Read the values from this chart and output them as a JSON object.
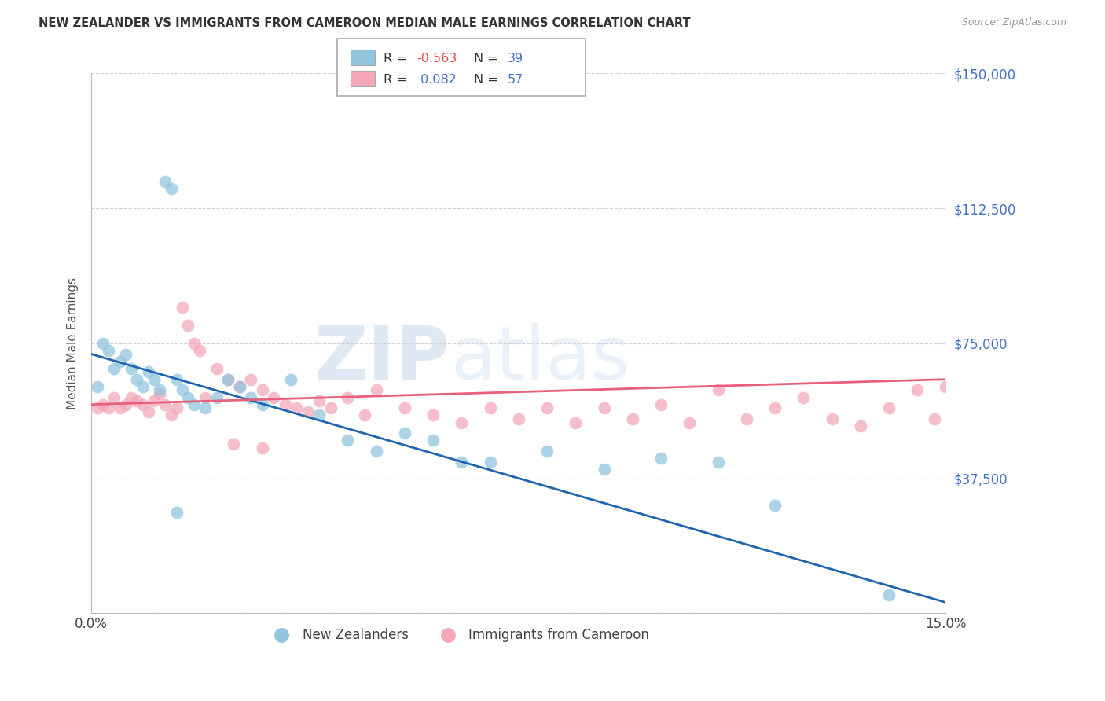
{
  "title": "NEW ZEALANDER VS IMMIGRANTS FROM CAMEROON MEDIAN MALE EARNINGS CORRELATION CHART",
  "source": "Source: ZipAtlas.com",
  "ylabel": "Median Male Earnings",
  "xlim": [
    0.0,
    0.15
  ],
  "ylim": [
    0,
    150000
  ],
  "yticks": [
    0,
    37500,
    75000,
    112500,
    150000
  ],
  "ytick_labels": [
    "",
    "$37,500",
    "$75,000",
    "$112,500",
    "$150,000"
  ],
  "xticks": [
    0.0,
    0.05,
    0.1,
    0.15
  ],
  "xtick_labels": [
    "0.0%",
    "",
    "",
    "15.0%"
  ],
  "background_color": "#ffffff",
  "grid_color": "#cccccc",
  "color_blue": "#92c5de",
  "color_pink": "#f4a7b9",
  "line_blue": "#2166ac",
  "line_pink": "#e8607a",
  "nz_trend_x": [
    0.0,
    0.15
  ],
  "nz_trend_y": [
    72000,
    3000
  ],
  "cam_trend_x": [
    0.0,
    0.15
  ],
  "cam_trend_y": [
    58000,
    65000
  ],
  "nz_x": [
    0.001,
    0.002,
    0.003,
    0.004,
    0.005,
    0.006,
    0.007,
    0.008,
    0.009,
    0.01,
    0.011,
    0.012,
    0.013,
    0.014,
    0.015,
    0.016,
    0.017,
    0.018,
    0.02,
    0.022,
    0.024,
    0.026,
    0.028,
    0.03,
    0.035,
    0.04,
    0.045,
    0.05,
    0.055,
    0.06,
    0.065,
    0.07,
    0.08,
    0.09,
    0.1,
    0.11,
    0.12,
    0.14,
    0.015
  ],
  "nz_y": [
    63000,
    75000,
    73000,
    68000,
    70000,
    72000,
    68000,
    65000,
    63000,
    67000,
    65000,
    62000,
    120000,
    118000,
    65000,
    62000,
    60000,
    58000,
    57000,
    60000,
    65000,
    63000,
    60000,
    58000,
    65000,
    55000,
    48000,
    45000,
    50000,
    48000,
    42000,
    42000,
    45000,
    40000,
    43000,
    42000,
    30000,
    5000,
    28000
  ],
  "cam_x": [
    0.001,
    0.002,
    0.003,
    0.004,
    0.005,
    0.006,
    0.007,
    0.008,
    0.009,
    0.01,
    0.011,
    0.012,
    0.013,
    0.014,
    0.015,
    0.016,
    0.017,
    0.018,
    0.019,
    0.02,
    0.022,
    0.024,
    0.026,
    0.028,
    0.03,
    0.032,
    0.034,
    0.036,
    0.038,
    0.04,
    0.042,
    0.045,
    0.048,
    0.05,
    0.055,
    0.06,
    0.065,
    0.07,
    0.075,
    0.08,
    0.085,
    0.09,
    0.095,
    0.1,
    0.105,
    0.11,
    0.115,
    0.12,
    0.125,
    0.13,
    0.135,
    0.14,
    0.145,
    0.148,
    0.15,
    0.03,
    0.025
  ],
  "cam_y": [
    57000,
    58000,
    57000,
    60000,
    57000,
    58000,
    60000,
    59000,
    58000,
    56000,
    59000,
    61000,
    58000,
    55000,
    57000,
    85000,
    80000,
    75000,
    73000,
    60000,
    68000,
    65000,
    63000,
    65000,
    62000,
    60000,
    58000,
    57000,
    56000,
    59000,
    57000,
    60000,
    55000,
    62000,
    57000,
    55000,
    53000,
    57000,
    54000,
    57000,
    53000,
    57000,
    54000,
    58000,
    53000,
    62000,
    54000,
    57000,
    60000,
    54000,
    52000,
    57000,
    62000,
    54000,
    63000,
    46000,
    47000
  ]
}
